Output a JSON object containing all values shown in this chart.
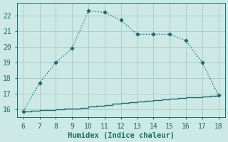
{
  "xlabel": "Humidex (Indice chaleur)",
  "ylabel": "",
  "bg_color": "#cce9e5",
  "grid_color": "#aacfca",
  "line_color": "#1a6e66",
  "x_main": [
    6,
    7,
    8,
    9,
    10,
    11,
    12,
    13,
    14,
    15,
    16,
    17,
    18
  ],
  "y_main": [
    15.9,
    17.7,
    19.0,
    19.9,
    22.3,
    22.2,
    21.7,
    20.8,
    20.8,
    20.8,
    20.4,
    19.0,
    16.9
  ],
  "x_base": [
    6,
    6.5,
    7,
    7.5,
    8,
    8.5,
    9,
    9.5,
    10,
    10.5,
    11,
    11.5,
    12,
    12.5,
    13,
    13.5,
    14,
    14.5,
    15,
    15.5,
    16,
    16.5,
    17,
    17.5,
    18
  ],
  "y_base": [
    15.9,
    15.92,
    15.95,
    15.98,
    16.01,
    16.04,
    16.07,
    16.1,
    16.2,
    16.25,
    16.3,
    16.37,
    16.42,
    16.47,
    16.52,
    16.57,
    16.62,
    16.65,
    16.7,
    16.73,
    16.77,
    16.8,
    16.83,
    16.87,
    16.9
  ],
  "xlim": [
    5.6,
    18.4
  ],
  "ylim": [
    15.5,
    22.8
  ],
  "xticks": [
    6,
    7,
    8,
    9,
    10,
    11,
    12,
    13,
    14,
    15,
    16,
    17,
    18
  ],
  "yticks": [
    16,
    17,
    18,
    19,
    20,
    21,
    22
  ],
  "tick_label_size": 7,
  "xlabel_size": 7.5,
  "tick_color": "#1a6e66",
  "font_color": "#1a6e66",
  "spine_color": "#1a6e66"
}
